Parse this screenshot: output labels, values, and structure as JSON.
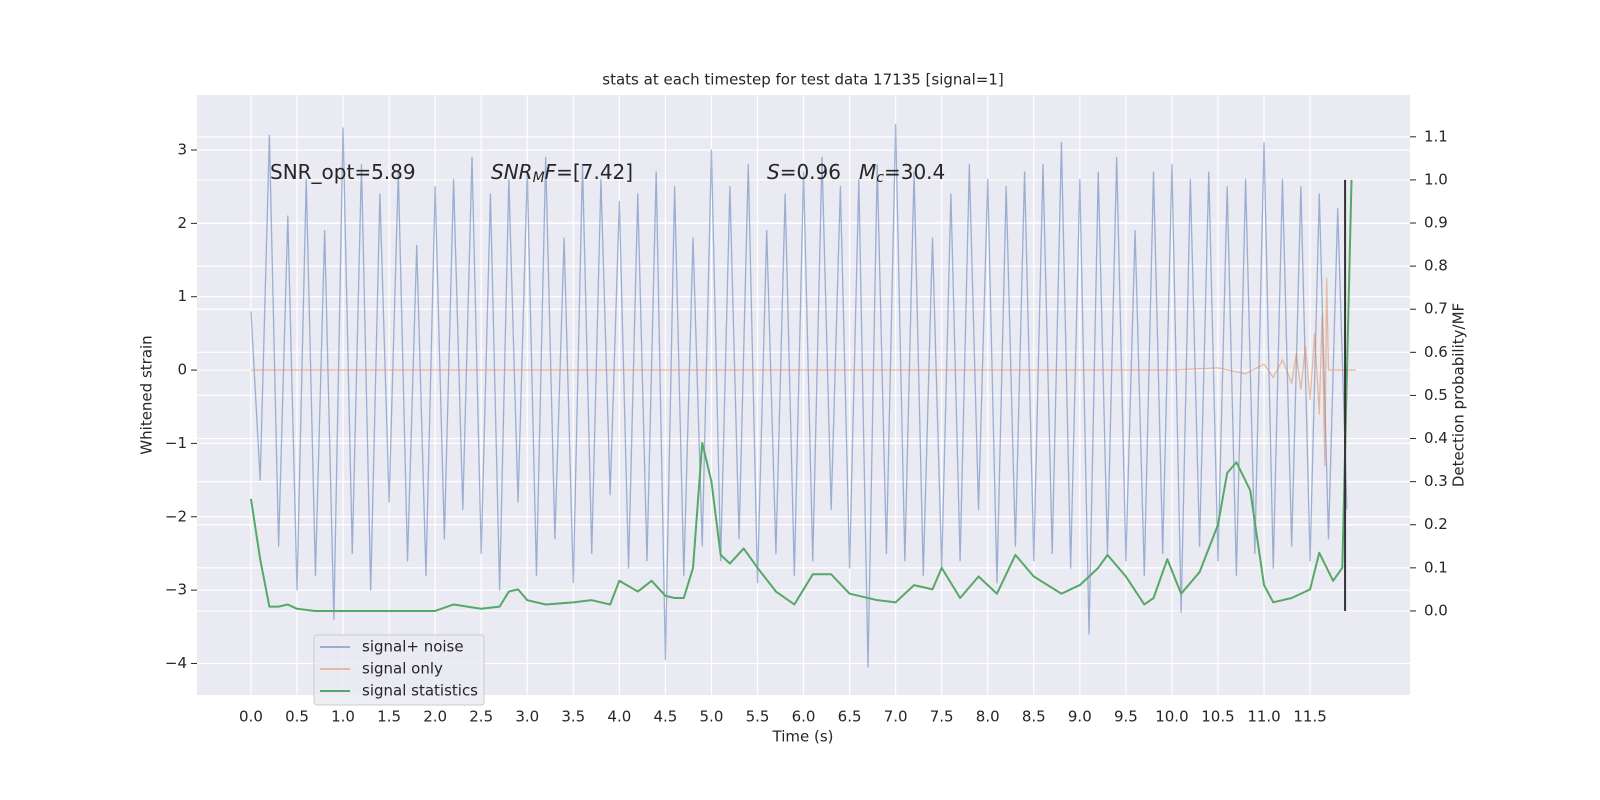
{
  "chart_data": {
    "type": "line",
    "title": "stats at each timestep for test data 17135 [signal=1]",
    "xlabel": "Time (s)",
    "ylabel": "Whitened strain",
    "y2label": "Detection probability/MF",
    "xlim": [
      -0.586,
      12.585
    ],
    "ylim": [
      -4.43,
      3.75
    ],
    "y2lim": [
      -0.195,
      1.197
    ],
    "xticks": [
      {
        "value": 0,
        "label": "0.0"
      },
      {
        "value": 0.5,
        "label": "0.5"
      },
      {
        "value": 1,
        "label": "1.0"
      },
      {
        "value": 1.5,
        "label": "1.5"
      },
      {
        "value": 2,
        "label": "2.0"
      },
      {
        "value": 2.5,
        "label": "2.5"
      },
      {
        "value": 3,
        "label": "3.0"
      },
      {
        "value": 3.5,
        "label": "3.5"
      },
      {
        "value": 4,
        "label": "4.0"
      },
      {
        "value": 4.5,
        "label": "4.5"
      },
      {
        "value": 5,
        "label": "5.0"
      },
      {
        "value": 5.5,
        "label": "5.5"
      },
      {
        "value": 6,
        "label": "6.0"
      },
      {
        "value": 6.5,
        "label": "6.5"
      },
      {
        "value": 7,
        "label": "7.0"
      },
      {
        "value": 7.5,
        "label": "7.5"
      },
      {
        "value": 8,
        "label": "8.0"
      },
      {
        "value": 8.5,
        "label": "8.5"
      },
      {
        "value": 9,
        "label": "9.0"
      },
      {
        "value": 9.5,
        "label": "9.5"
      },
      {
        "value": 10,
        "label": "10.0"
      },
      {
        "value": 10.5,
        "label": "10.5"
      },
      {
        "value": 11,
        "label": "11.0"
      },
      {
        "value": 11.5,
        "label": "11.5"
      }
    ],
    "yticks": [
      {
        "value": -4,
        "label": "−4"
      },
      {
        "value": -3,
        "label": "−3"
      },
      {
        "value": -2,
        "label": "−2"
      },
      {
        "value": -1,
        "label": "−1"
      },
      0,
      1,
      2,
      3
    ],
    "y2ticks": [
      {
        "value": 0,
        "label": "0.0"
      },
      {
        "value": 0.1,
        "label": "0.1"
      },
      {
        "value": 0.2,
        "label": "0.2"
      },
      {
        "value": 0.3,
        "label": "0.3"
      },
      {
        "value": 0.4,
        "label": "0.4"
      },
      {
        "value": 0.5,
        "label": "0.5"
      },
      {
        "value": 0.6,
        "label": "0.6"
      },
      {
        "value": 0.7,
        "label": "0.7"
      },
      {
        "value": 0.8,
        "label": "0.8"
      },
      {
        "value": 0.9,
        "label": "0.9"
      },
      {
        "value": 1,
        "label": "1.0"
      },
      {
        "value": 1.1,
        "label": "1.1"
      }
    ],
    "grid": true,
    "legend": "lower left",
    "series": [
      {
        "name": "signal+ noise",
        "color": "#4c72b0",
        "opacity": 0.5,
        "x": [
          0.0,
          0.1,
          0.2,
          0.3,
          0.4,
          0.5,
          0.6,
          0.7,
          0.8,
          0.9,
          1.0,
          1.1,
          1.2,
          1.3,
          1.4,
          1.5,
          1.6,
          1.7,
          1.8,
          1.9,
          2.0,
          2.1,
          2.2,
          2.3,
          2.4,
          2.5,
          2.6,
          2.7,
          2.8,
          2.9,
          3.0,
          3.1,
          3.2,
          3.3,
          3.4,
          3.5,
          3.6,
          3.7,
          3.8,
          3.9,
          4.0,
          4.1,
          4.2,
          4.3,
          4.4,
          4.5,
          4.6,
          4.7,
          4.8,
          4.9,
          5.0,
          5.1,
          5.2,
          5.3,
          5.4,
          5.5,
          5.6,
          5.7,
          5.8,
          5.9,
          6.0,
          6.1,
          6.2,
          6.3,
          6.4,
          6.5,
          6.6,
          6.7,
          6.8,
          6.9,
          7.0,
          7.1,
          7.2,
          7.3,
          7.4,
          7.5,
          7.6,
          7.7,
          7.8,
          7.9,
          8.0,
          8.1,
          8.2,
          8.3,
          8.4,
          8.5,
          8.6,
          8.7,
          8.8,
          8.9,
          9.0,
          9.1,
          9.2,
          9.3,
          9.4,
          9.5,
          9.6,
          9.7,
          9.8,
          9.9,
          10.0,
          10.1,
          10.2,
          10.3,
          10.4,
          10.5,
          10.6,
          10.7,
          10.8,
          10.9,
          11.0,
          11.1,
          11.2,
          11.3,
          11.4,
          11.5,
          11.6,
          11.7,
          11.8,
          11.9
        ],
        "values": [
          0.8,
          -1.5,
          3.2,
          -2.4,
          2.1,
          -3.0,
          2.6,
          -2.8,
          1.9,
          -3.4,
          3.3,
          -2.5,
          2.8,
          -3.0,
          2.4,
          -1.8,
          2.7,
          -2.6,
          1.7,
          -2.8,
          2.5,
          -2.3,
          2.6,
          -1.9,
          2.9,
          -2.5,
          2.4,
          -3.0,
          2.6,
          -1.8,
          2.7,
          -2.8,
          2.9,
          -2.3,
          1.8,
          -2.9,
          2.8,
          -2.5,
          2.6,
          -1.7,
          2.3,
          -2.7,
          2.4,
          -2.6,
          2.7,
          -3.95,
          2.5,
          -2.8,
          1.8,
          -2.4,
          3.0,
          -2.6,
          2.5,
          -2.3,
          2.8,
          -2.9,
          1.9,
          -2.5,
          2.4,
          -2.8,
          2.7,
          -2.6,
          2.9,
          -1.9,
          2.5,
          -2.7,
          2.6,
          -4.05,
          2.8,
          -2.5,
          3.35,
          -2.6,
          2.7,
          -2.8,
          1.8,
          -2.7,
          2.4,
          -2.6,
          2.8,
          -1.9,
          2.6,
          -2.9,
          2.5,
          -2.4,
          2.7,
          -2.6,
          2.8,
          -2.5,
          3.1,
          -2.7,
          2.6,
          -3.6,
          2.7,
          -2.5,
          2.9,
          -2.6,
          1.9,
          -2.8,
          2.7,
          -2.5,
          2.8,
          -3.3,
          2.6,
          -2.4,
          2.7,
          -2.6,
          2.5,
          -2.8,
          2.6,
          -2.5,
          3.1,
          -2.7,
          2.6,
          -2.4,
          2.5,
          -2.6,
          2.4,
          -2.3,
          2.2,
          -1.9
        ]
      },
      {
        "name": "signal only",
        "color": "#dd8452",
        "opacity": 0.5,
        "x": [
          0.0,
          10.0,
          10.5,
          10.8,
          11.0,
          11.1,
          11.2,
          11.3,
          11.35,
          11.4,
          11.45,
          11.5,
          11.55,
          11.6,
          11.63,
          11.66,
          11.68,
          11.7,
          12.0
        ],
        "values": [
          0,
          0,
          0.03,
          -0.05,
          0.08,
          -0.1,
          0.14,
          -0.18,
          0.22,
          -0.26,
          0.32,
          -0.4,
          0.5,
          -0.6,
          0.75,
          -1.3,
          1.25,
          0,
          0
        ]
      },
      {
        "name": "signal statistics",
        "color": "#55a868",
        "opacity": 1,
        "axis": "y2",
        "x": [
          0.0,
          0.1,
          0.2,
          0.3,
          0.4,
          0.5,
          0.7,
          1.0,
          1.5,
          2.0,
          2.2,
          2.5,
          2.7,
          2.8,
          2.9,
          3.0,
          3.2,
          3.5,
          3.7,
          3.9,
          4.0,
          4.2,
          4.35,
          4.5,
          4.6,
          4.7,
          4.8,
          4.9,
          5.0,
          5.1,
          5.2,
          5.35,
          5.5,
          5.7,
          5.9,
          6.1,
          6.3,
          6.5,
          6.8,
          7.0,
          7.2,
          7.4,
          7.5,
          7.7,
          7.9,
          8.1,
          8.3,
          8.5,
          8.8,
          9.0,
          9.2,
          9.3,
          9.5,
          9.7,
          9.8,
          9.95,
          10.1,
          10.3,
          10.5,
          10.6,
          10.7,
          10.85,
          11.0,
          11.1,
          11.3,
          11.5,
          11.6,
          11.75,
          11.85,
          11.95
        ],
        "values": [
          0.26,
          0.12,
          0.01,
          0.01,
          0.015,
          0.005,
          0.0,
          0.0,
          0.0,
          0.0,
          0.015,
          0.005,
          0.01,
          0.045,
          0.05,
          0.025,
          0.015,
          0.02,
          0.025,
          0.015,
          0.07,
          0.045,
          0.07,
          0.035,
          0.03,
          0.03,
          0.1,
          0.39,
          0.3,
          0.13,
          0.11,
          0.145,
          0.1,
          0.045,
          0.015,
          0.085,
          0.085,
          0.04,
          0.025,
          0.02,
          0.06,
          0.05,
          0.1,
          0.03,
          0.08,
          0.04,
          0.13,
          0.08,
          0.04,
          0.06,
          0.1,
          0.13,
          0.08,
          0.015,
          0.03,
          0.12,
          0.04,
          0.09,
          0.2,
          0.32,
          0.345,
          0.28,
          0.06,
          0.02,
          0.03,
          0.05,
          0.135,
          0.07,
          0.1,
          1.0
        ]
      }
    ],
    "marker": {
      "x": 11.88,
      "y2": [
        0,
        1
      ],
      "color": "#333333"
    },
    "annotations": [
      {
        "parts": [
          {
            "text": "SNR_opt=5.89"
          }
        ]
      },
      {
        "parts": [
          {
            "text": "SNR",
            "style": "italic"
          },
          {
            "text": "M",
            "style": "sub"
          },
          {
            "text": "F",
            "style": "italic"
          },
          {
            "text": "=[7.42]"
          }
        ]
      },
      {
        "parts": [
          {
            "text": "S",
            "style": "italic"
          },
          {
            "text": "=0.96"
          }
        ]
      },
      {
        "parts": [
          {
            "text": "M",
            "style": "italic"
          },
          {
            "text": "c",
            "style": "sub"
          },
          {
            "text": "=30.4"
          }
        ]
      }
    ]
  }
}
